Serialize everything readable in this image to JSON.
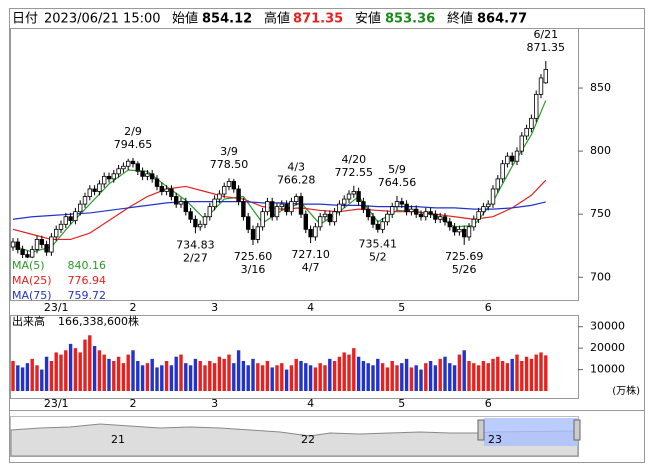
{
  "header": {
    "date_label": "日付",
    "date": "2023/06/21 15:00",
    "open_label": "始値",
    "high_label": "高値",
    "low_label": "安値",
    "close_label": "終値"
  },
  "chart_data": {
    "type": "candlestick",
    "categories": [
      null,
      null,
      null,
      null,
      null,
      null,
      null,
      null,
      null,
      "23/1",
      null,
      null,
      null,
      null,
      null,
      null,
      null,
      null,
      null,
      null,
      null,
      null,
      null,
      null,
      null,
      "2",
      null,
      null,
      null,
      null,
      null,
      null,
      null,
      null,
      null,
      null,
      null,
      null,
      null,
      null,
      null,
      null,
      "3",
      null,
      null,
      null,
      null,
      null,
      null,
      null,
      null,
      null,
      null,
      null,
      null,
      null,
      null,
      null,
      null,
      null,
      null,
      null,
      "4",
      null,
      null,
      null,
      null,
      null,
      null,
      null,
      null,
      null,
      null,
      null,
      null,
      null,
      null,
      null,
      null,
      null,
      null,
      "5",
      null,
      null,
      null,
      null,
      null,
      null,
      null,
      null,
      null,
      null,
      null,
      null,
      null,
      null,
      null,
      null,
      null,
      "6",
      null,
      null,
      null,
      null,
      null,
      null,
      null,
      null,
      null,
      null,
      null,
      null
    ],
    "candles": [
      [
        724,
        731,
        721,
        728
      ],
      [
        728,
        731,
        719,
        722
      ],
      [
        722,
        725,
        715,
        718
      ],
      [
        718,
        721,
        712,
        716
      ],
      [
        716,
        725,
        713,
        722
      ],
      [
        722,
        733,
        719,
        730
      ],
      [
        730,
        733,
        723,
        726
      ],
      [
        726,
        729,
        717,
        720
      ],
      [
        720,
        735,
        717,
        732
      ],
      [
        732,
        741,
        729,
        738
      ],
      [
        738,
        745,
        735,
        742
      ],
      [
        742,
        751,
        739,
        748
      ],
      [
        748,
        751,
        742,
        745
      ],
      [
        745,
        755,
        742,
        752
      ],
      [
        752,
        761,
        749,
        758
      ],
      [
        758,
        767,
        755,
        764
      ],
      [
        764,
        773,
        761,
        770
      ],
      [
        770,
        773,
        765,
        768
      ],
      [
        768,
        777,
        765,
        774
      ],
      [
        774,
        783,
        771,
        780
      ],
      [
        780,
        783,
        775,
        778
      ],
      [
        778,
        785,
        775,
        782
      ],
      [
        782,
        789,
        779,
        786
      ],
      [
        786,
        791,
        783,
        788
      ],
      [
        788,
        794,
        785,
        792
      ],
      [
        792,
        794.65,
        787,
        790
      ],
      [
        790,
        792,
        781,
        784
      ],
      [
        784,
        787,
        777,
        780
      ],
      [
        780,
        785,
        777,
        782
      ],
      [
        782,
        785,
        775,
        778
      ],
      [
        778,
        781,
        769,
        772
      ],
      [
        772,
        775,
        765,
        768
      ],
      [
        768,
        773,
        765,
        770
      ],
      [
        770,
        773,
        761,
        764
      ],
      [
        764,
        767,
        755,
        758
      ],
      [
        758,
        763,
        755,
        760
      ],
      [
        760,
        763,
        749,
        752
      ],
      [
        752,
        755,
        743,
        746
      ],
      [
        746,
        749,
        734.83,
        740
      ],
      [
        740,
        745,
        737,
        742
      ],
      [
        742,
        751,
        739,
        748
      ],
      [
        748,
        759,
        745,
        756
      ],
      [
        756,
        765,
        753,
        762
      ],
      [
        762,
        769,
        759,
        766
      ],
      [
        766,
        775,
        763,
        772
      ],
      [
        772,
        778.5,
        769,
        776
      ],
      [
        776,
        778,
        767,
        770
      ],
      [
        770,
        773,
        757,
        760
      ],
      [
        760,
        763,
        745,
        748
      ],
      [
        748,
        751,
        735,
        738
      ],
      [
        738,
        741,
        725.6,
        730
      ],
      [
        730,
        743,
        727,
        740
      ],
      [
        740,
        755,
        737,
        752
      ],
      [
        752,
        763,
        749,
        760
      ],
      [
        760,
        763,
        745,
        748
      ],
      [
        748,
        759,
        745,
        756
      ],
      [
        756,
        761,
        753,
        758
      ],
      [
        758,
        761,
        749,
        752
      ],
      [
        752,
        763,
        749,
        760
      ],
      [
        760,
        766.28,
        757,
        764
      ],
      [
        764,
        767,
        747,
        750
      ],
      [
        750,
        753,
        735,
        738
      ],
      [
        738,
        741,
        727.1,
        732
      ],
      [
        732,
        743,
        729,
        740
      ],
      [
        740,
        751,
        737,
        748
      ],
      [
        748,
        753,
        745,
        750
      ],
      [
        750,
        753,
        741,
        744
      ],
      [
        744,
        755,
        741,
        752
      ],
      [
        752,
        761,
        749,
        758
      ],
      [
        758,
        765,
        755,
        762
      ],
      [
        762,
        769,
        759,
        766
      ],
      [
        766,
        772.55,
        763,
        768
      ],
      [
        768,
        771,
        757,
        760
      ],
      [
        760,
        763,
        751,
        754
      ],
      [
        754,
        757,
        745,
        748
      ],
      [
        748,
        751,
        739,
        742
      ],
      [
        742,
        745,
        735.41,
        738
      ],
      [
        738,
        747,
        735,
        744
      ],
      [
        744,
        753,
        741,
        750
      ],
      [
        750,
        759,
        747,
        756
      ],
      [
        756,
        764.56,
        753,
        760
      ],
      [
        760,
        763,
        755,
        758
      ],
      [
        758,
        761,
        749,
        752
      ],
      [
        752,
        757,
        749,
        754
      ],
      [
        754,
        757,
        747,
        750
      ],
      [
        750,
        753,
        745,
        748
      ],
      [
        748,
        755,
        745,
        752
      ],
      [
        752,
        755,
        747,
        750
      ],
      [
        750,
        753,
        743,
        746
      ],
      [
        746,
        751,
        743,
        748
      ],
      [
        748,
        751,
        741,
        744
      ],
      [
        744,
        747,
        737,
        740
      ],
      [
        740,
        743,
        733,
        736
      ],
      [
        736,
        741,
        733,
        738
      ],
      [
        738,
        741,
        725.69,
        732
      ],
      [
        732,
        743,
        729,
        740
      ],
      [
        740,
        749,
        737,
        746
      ],
      [
        746,
        755,
        743,
        752
      ],
      [
        752,
        759,
        749,
        756
      ],
      [
        756,
        761,
        753,
        758
      ],
      [
        758,
        773,
        755,
        770
      ],
      [
        770,
        781,
        767,
        778
      ],
      [
        778,
        793,
        775,
        790
      ],
      [
        790,
        799,
        787,
        796
      ],
      [
        796,
        799,
        789,
        792
      ],
      [
        792,
        803,
        789,
        800
      ],
      [
        800,
        815,
        797,
        812
      ],
      [
        812,
        821,
        809,
        818
      ],
      [
        818,
        829,
        815,
        826
      ],
      [
        826,
        848,
        823,
        845
      ],
      [
        845,
        861,
        842,
        858
      ],
      [
        854.12,
        871.35,
        853.36,
        864.77
      ]
    ],
    "ylim": [
      682,
      896
    ],
    "yticks": [
      700,
      750,
      800,
      850
    ],
    "annotations": [
      {
        "date": "2/9",
        "value": 794.65
      },
      {
        "date": "2/27",
        "value": 734.83
      },
      {
        "date": "3/9",
        "value": 778.5,
        "label": "778.50"
      },
      {
        "date": "3/16",
        "value": 725.6,
        "label": "725.60"
      },
      {
        "date": "4/3",
        "value": 766.28
      },
      {
        "date": "4/7",
        "value": 727.1,
        "label": "727.10"
      },
      {
        "date": "4/20",
        "value": 772.55
      },
      {
        "date": "5/2",
        "value": 735.41
      },
      {
        "date": "5/9",
        "value": 764.56
      },
      {
        "date": "5/26",
        "value": 725.69
      },
      {
        "date": "6/21",
        "value": 871.35
      }
    ],
    "ma": {
      "x": [
        0,
        4,
        8,
        12,
        16,
        20,
        24,
        28,
        32,
        36,
        40,
        44,
        48,
        52,
        56,
        60,
        64,
        68,
        72,
        76,
        80,
        84,
        88,
        92,
        96,
        100,
        104,
        108,
        111
      ],
      "series": [
        {
          "name": "MA(5)",
          "color": "#2a9a2a",
          "values": [
            725,
            720,
            724,
            742,
            758,
            774,
            785,
            784,
            772,
            761,
            746,
            762,
            764,
            743,
            753,
            759,
            742,
            752,
            764,
            744,
            753,
            752,
            749,
            740,
            741,
            760,
            788,
            813,
            840.16
          ]
        },
        {
          "name": "MA(25)",
          "color": "#e8201e",
          "values": [
            738,
            734,
            730,
            730,
            735,
            745,
            755,
            764,
            770,
            772,
            768,
            764,
            762,
            756,
            754,
            755,
            753,
            752,
            754,
            753,
            752,
            752,
            750,
            748,
            746,
            748,
            755,
            765,
            776.94
          ]
        },
        {
          "name": "MA(75)",
          "color": "#2233cc",
          "values": [
            746,
            748,
            749,
            750,
            751,
            753,
            755,
            757,
            759,
            760,
            760,
            760,
            760,
            759,
            759,
            758,
            758,
            757,
            757,
            756,
            756,
            756,
            755,
            755,
            754,
            754,
            755,
            757,
            759.72
          ]
        }
      ]
    },
    "volume": {
      "label": "出来高",
      "total": "166,338,600株",
      "unit": "(万株)",
      "up_color": "#e8201e",
      "down_color": "#2233cc",
      "ylim": [
        0,
        35000
      ],
      "yticks": [
        10000,
        20000,
        30000
      ],
      "values": [
        14000,
        12000,
        11000,
        13000,
        15000,
        12000,
        10000,
        16000,
        14000,
        18000,
        17000,
        19000,
        22000,
        20000,
        18000,
        24000,
        26000,
        21000,
        19000,
        17000,
        15000,
        14000,
        16000,
        13000,
        17000,
        19000,
        14000,
        12000,
        13000,
        15000,
        11000,
        12000,
        14000,
        12000,
        16000,
        17000,
        13000,
        12000,
        15000,
        14000,
        12000,
        14000,
        13000,
        16000,
        15000,
        17000,
        13000,
        19000,
        14000,
        12000,
        15000,
        13000,
        12000,
        14000,
        11000,
        12000,
        13000,
        10000,
        12000,
        15000,
        14000,
        13000,
        12000,
        11000,
        13000,
        12000,
        15000,
        14000,
        16000,
        18000,
        17000,
        20000,
        16000,
        14000,
        13000,
        12000,
        15000,
        13000,
        11000,
        14000,
        12000,
        13000,
        15000,
        11000,
        12000,
        10000,
        13000,
        14000,
        12000,
        15000,
        16000,
        13000,
        12000,
        17000,
        19000,
        14000,
        13000,
        12000,
        14000,
        13000,
        15000,
        16000,
        14000,
        13000,
        15000,
        17000,
        14000,
        16000,
        15000,
        17000,
        18000,
        16633.86
      ]
    },
    "navigator": {
      "labels": [
        "21",
        "22",
        "23"
      ]
    }
  }
}
